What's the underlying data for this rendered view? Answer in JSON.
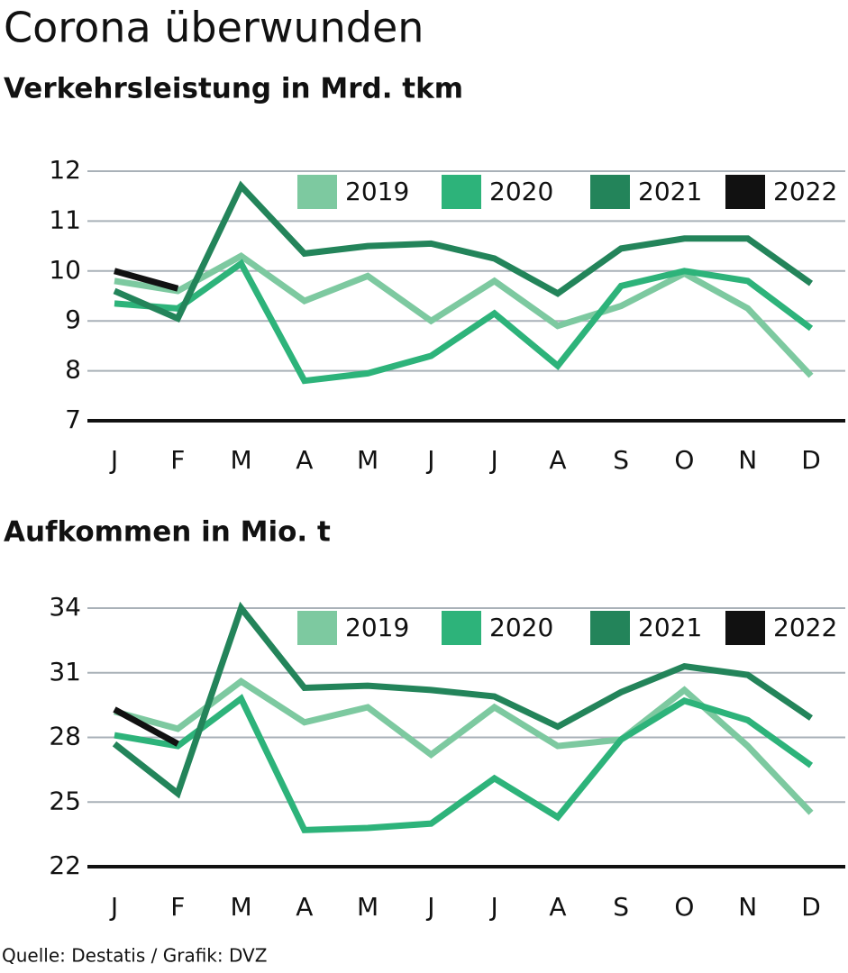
{
  "title": "Corona überwunden",
  "source": "Quelle: Destatis / Grafik: DVZ",
  "chart_data": [
    {
      "type": "line",
      "title": "Verkehrsleistung in Mrd. tkm",
      "categories": [
        "J",
        "F",
        "M",
        "A",
        "M",
        "J",
        "J",
        "A",
        "S",
        "O",
        "N",
        "D"
      ],
      "ylim": [
        7,
        12
      ],
      "yticks": [
        7,
        8,
        9,
        10,
        11,
        12
      ],
      "grid": true,
      "legend": "top-right",
      "series": [
        {
          "name": "2019",
          "color": "#7dc9a0",
          "values": [
            9.8,
            9.6,
            10.3,
            9.4,
            9.9,
            9.0,
            9.8,
            8.9,
            9.3,
            9.95,
            9.25,
            7.9
          ]
        },
        {
          "name": "2020",
          "color": "#2db37a",
          "values": [
            9.35,
            9.25,
            10.15,
            7.8,
            7.95,
            8.3,
            9.15,
            8.1,
            9.7,
            10.0,
            9.8,
            8.85
          ]
        },
        {
          "name": "2021",
          "color": "#23845a",
          "values": [
            9.6,
            9.05,
            11.7,
            10.35,
            10.5,
            10.55,
            10.25,
            9.55,
            10.45,
            10.65,
            10.65,
            9.75
          ]
        },
        {
          "name": "2022",
          "color": "#111111",
          "values": [
            10.0,
            9.65,
            null,
            null,
            null,
            null,
            null,
            null,
            null,
            null,
            null,
            null
          ]
        }
      ]
    },
    {
      "type": "line",
      "title": "Aufkommen in Mio. t",
      "categories": [
        "J",
        "F",
        "M",
        "A",
        "M",
        "J",
        "J",
        "A",
        "S",
        "O",
        "N",
        "D"
      ],
      "ylim": [
        22,
        34
      ],
      "yticks": [
        22,
        25,
        28,
        31,
        34
      ],
      "grid": true,
      "legend": "top-right",
      "series": [
        {
          "name": "2019",
          "color": "#7dc9a0",
          "values": [
            29.2,
            28.4,
            30.6,
            28.7,
            29.4,
            27.2,
            29.4,
            27.6,
            27.9,
            30.2,
            27.6,
            24.5
          ]
        },
        {
          "name": "2020",
          "color": "#2db37a",
          "values": [
            28.1,
            27.6,
            29.8,
            23.7,
            23.8,
            24.0,
            26.1,
            24.3,
            27.9,
            29.7,
            28.8,
            26.7
          ]
        },
        {
          "name": "2021",
          "color": "#23845a",
          "values": [
            27.7,
            25.4,
            34.0,
            30.3,
            30.4,
            30.2,
            29.9,
            28.5,
            30.1,
            31.3,
            30.9,
            28.9
          ]
        },
        {
          "name": "2022",
          "color": "#111111",
          "values": [
            29.3,
            27.7,
            null,
            null,
            null,
            null,
            null,
            null,
            null,
            null,
            null,
            null
          ]
        }
      ]
    }
  ]
}
